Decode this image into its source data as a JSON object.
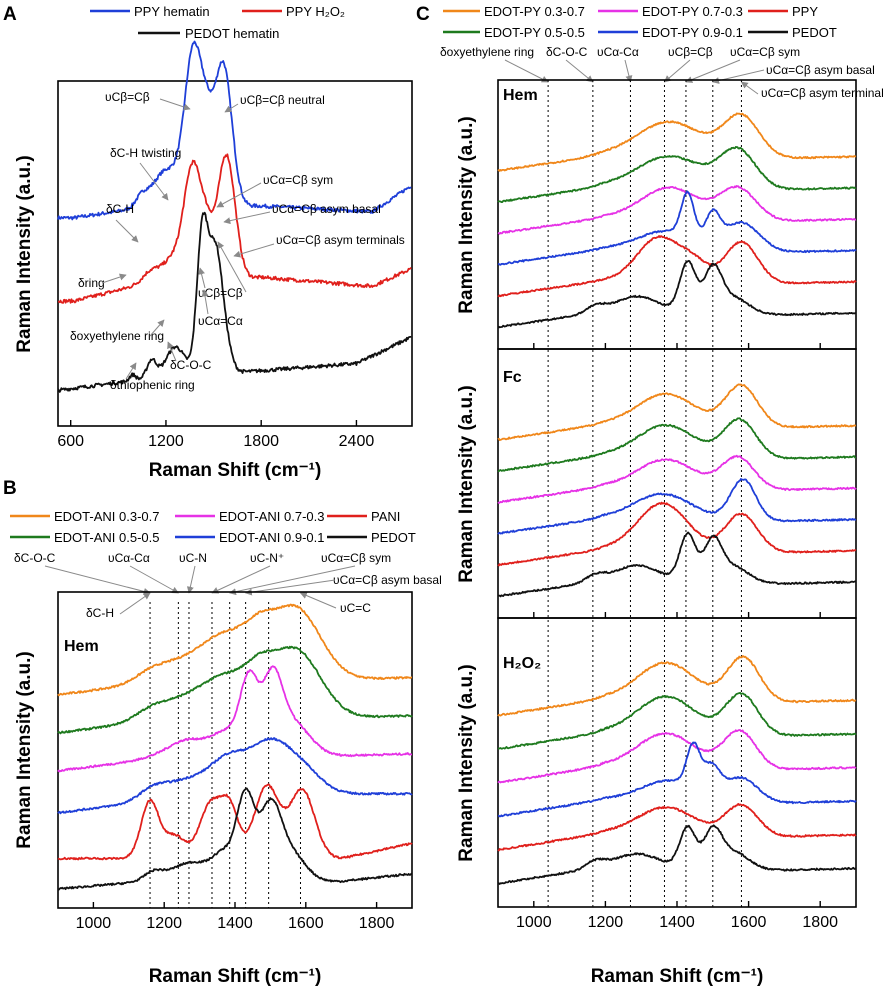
{
  "colors": {
    "blue": "#1f3fd8",
    "red": "#e0201c",
    "black": "#111111",
    "orange": "#f0871a",
    "green": "#1e7a1e",
    "magenta": "#e632e6",
    "arrow": "#8a8a8a"
  },
  "chart_data": [
    {
      "id": "A",
      "type": "line",
      "panel_label": "A",
      "xlabel": "Raman Shift (cm⁻¹)",
      "ylabel": "Raman Intensity (a.u.)",
      "xlim": [
        520,
        2750
      ],
      "xticks": [
        600,
        1200,
        1800,
        2400
      ],
      "xtick_labels": [
        "600",
        "1200",
        "1800",
        "2400"
      ],
      "legend": [
        "PPY hematin",
        "PPY H₂O₂",
        "PEDOT hematin"
      ],
      "series": [
        {
          "name": "PPY hematin",
          "color": "blue",
          "offset": 2.0,
          "baseline": [
            [
              620,
              0.9
            ],
            [
              1000,
              1.05
            ],
            [
              1800,
              1.1
            ],
            [
              2500,
              1.0
            ],
            [
              2750,
              1.45
            ]
          ],
          "peaks": [
            [
              1050,
              0.2,
              40
            ],
            [
              1150,
              0.3,
              60
            ],
            [
              1240,
              0.5,
              70
            ],
            [
              1375,
              2.6,
              55
            ],
            [
              1560,
              2.4,
              55
            ],
            [
              1460,
              0.8,
              40
            ]
          ]
        },
        {
          "name": "PPY H₂O₂",
          "color": "red",
          "offset": 1.2,
          "baseline": [
            [
              620,
              0.3
            ],
            [
              1000,
              0.55
            ],
            [
              1800,
              0.7
            ],
            [
              2500,
              0.55
            ],
            [
              2750,
              0.85
            ]
          ],
          "peaks": [
            [
              1100,
              0.2,
              50
            ],
            [
              1240,
              0.4,
              70
            ],
            [
              1370,
              1.9,
              55
            ],
            [
              1580,
              2.1,
              55
            ],
            [
              1460,
              0.6,
              40
            ]
          ]
        },
        {
          "name": "PEDOT hematin",
          "color": "black",
          "offset": 0.0,
          "baseline": [
            [
              520,
              0.0
            ],
            [
              1100,
              0.2
            ],
            [
              1900,
              0.35
            ],
            [
              2400,
              0.45
            ],
            [
              2750,
              0.9
            ]
          ],
          "peaks": [
            [
              990,
              0.1,
              20
            ],
            [
              1110,
              0.3,
              30
            ],
            [
              1260,
              0.5,
              60
            ],
            [
              1430,
              2.4,
              35
            ],
            [
              1510,
              1.9,
              40
            ],
            [
              1570,
              0.5,
              40
            ]
          ]
        }
      ],
      "annotations": [
        "υCβ=Cβ",
        "υCβ=Cβ neutral",
        "δC-H twisting",
        "υCα=Cβ sym",
        "δC-H",
        "υCα=Cβ asym basal",
        "υCα=Cβ asym terminals",
        "δring",
        "υCβ=Cβ",
        "δoxyethylene ring",
        "υCα=Cα",
        "δC-O-C",
        "δthiophenic ring"
      ]
    },
    {
      "id": "B",
      "type": "line",
      "panel_label": "B",
      "sublabel": "Hem",
      "xlabel": "Raman Shift (cm⁻¹)",
      "ylabel": "Raman Intensity (a.u.)",
      "xlim": [
        900,
        1900
      ],
      "xticks": [
        1000,
        1200,
        1400,
        1600,
        1800
      ],
      "xtick_labels": [
        "1000",
        "1200",
        "1400",
        "1600",
        "1800"
      ],
      "legend": [
        "EDOT-ANI 0.3-0.7",
        "EDOT-ANI 0.7-0.3",
        "PANI",
        "EDOT-ANI 0.5-0.5",
        "EDOT-ANI 0.9-0.1",
        "PEDOT"
      ],
      "vlines": [
        1160,
        1240,
        1270,
        1335,
        1385,
        1430,
        1495,
        1585
      ],
      "annotations": [
        "δC-O-C",
        "υCα-Cα",
        "υC-N",
        "υC-N⁺",
        "υCα=Cβ sym",
        "υCα=Cβ asym basal",
        "δC-H",
        "υC=C"
      ],
      "series": [
        {
          "name": "EDOT-ANI 0.3-0.7",
          "color": "orange",
          "offset": 5.0,
          "baseline": [
            [
              900,
              0.1
            ],
            [
              1150,
              0.4
            ],
            [
              1700,
              0.5
            ],
            [
              1900,
              0.55
            ]
          ],
          "peaks": [
            [
              1170,
              0.3,
              50
            ],
            [
              1260,
              0.4,
              60
            ],
            [
              1380,
              1.2,
              70
            ],
            [
              1570,
              1.9,
              70
            ],
            [
              1470,
              0.6,
              40
            ]
          ]
        },
        {
          "name": "EDOT-ANI 0.5-0.5",
          "color": "green",
          "offset": 4.0,
          "baseline": [
            [
              900,
              0.1
            ],
            [
              1150,
              0.4
            ],
            [
              1700,
              0.5
            ],
            [
              1900,
              0.55
            ]
          ],
          "peaks": [
            [
              1170,
              0.3,
              50
            ],
            [
              1260,
              0.4,
              60
            ],
            [
              1380,
              1.1,
              70
            ],
            [
              1570,
              1.8,
              70
            ],
            [
              1470,
              0.6,
              40
            ]
          ]
        },
        {
          "name": "EDOT-ANI 0.7-0.3",
          "color": "magenta",
          "offset": 3.0,
          "baseline": [
            [
              900,
              0.1
            ],
            [
              1150,
              0.4
            ],
            [
              1700,
              0.5
            ],
            [
              1900,
              0.55
            ]
          ],
          "peaks": [
            [
              1270,
              0.5,
              60
            ],
            [
              1380,
              0.6,
              40
            ],
            [
              1440,
              1.9,
              25
            ],
            [
              1505,
              1.8,
              28
            ],
            [
              1560,
              0.9,
              50
            ]
          ]
        },
        {
          "name": "EDOT-ANI 0.9-0.1",
          "color": "blue",
          "offset": 2.0,
          "baseline": [
            [
              900,
              0.0
            ],
            [
              1150,
              0.3
            ],
            [
              1700,
              0.5
            ],
            [
              1900,
              0.5
            ]
          ],
          "peaks": [
            [
              1170,
              0.3,
              40
            ],
            [
              1270,
              0.5,
              60
            ],
            [
              1380,
              0.9,
              50
            ],
            [
              1500,
              1.4,
              60
            ],
            [
              1600,
              0.5,
              50
            ]
          ]
        },
        {
          "name": "PANI",
          "color": "red",
          "offset": 0.6,
          "baseline": [
            [
              900,
              0.2
            ],
            [
              1700,
              0.2
            ],
            [
              1900,
              0.6
            ]
          ],
          "peaks": [
            [
              1160,
              1.5,
              25
            ],
            [
              1230,
              0.6,
              30
            ],
            [
              1330,
              1.4,
              30
            ],
            [
              1385,
              1.3,
              25
            ],
            [
              1490,
              1.9,
              35
            ],
            [
              1590,
              1.8,
              35
            ]
          ]
        },
        {
          "name": "PEDOT",
          "color": "black",
          "offset": 0.0,
          "baseline": [
            [
              900,
              0.0
            ],
            [
              1150,
              0.2
            ],
            [
              1700,
              0.2
            ],
            [
              1900,
              0.4
            ]
          ],
          "peaks": [
            [
              1170,
              0.2,
              25
            ],
            [
              1280,
              0.5,
              60
            ],
            [
              1370,
              0.6,
              30
            ],
            [
              1430,
              2.2,
              25
            ],
            [
              1500,
              1.9,
              30
            ],
            [
              1560,
              0.7,
              40
            ]
          ]
        }
      ]
    },
    {
      "id": "C",
      "type": "line",
      "panel_label": "C",
      "xlabel": "Raman Shift (cm⁻¹)",
      "ylabel": "Raman Intensity (a.u.)",
      "xlim": [
        900,
        1900
      ],
      "xticks": [
        1000,
        1200,
        1400,
        1600,
        1800
      ],
      "xtick_labels": [
        "1000",
        "1200",
        "1400",
        "1600",
        "1800"
      ],
      "legend": [
        "EDOT-PY 0.3-0.7",
        "EDOT-PY 0.7-0.3",
        "PPY",
        "EDOT-PY 0.5-0.5",
        "EDOT-PY 0.9-0.1",
        "PEDOT"
      ],
      "vlines": [
        1040,
        1165,
        1270,
        1365,
        1425,
        1500,
        1580
      ],
      "annotations": [
        "δoxyethylene ring",
        "δC-O-C",
        "υCα-Cα",
        "υCβ=Cβ",
        "υCα=Cβ sym",
        "υCα=Cβ asym basal",
        "υCα=Cβ asym terminal"
      ],
      "subpanels": [
        {
          "label": "Hem",
          "variant": "hem"
        },
        {
          "label": "Fc",
          "variant": "fc"
        },
        {
          "label": "H₂O₂",
          "variant": "h2o2"
        }
      ],
      "series": [
        {
          "name": "EDOT-PY 0.3-0.7",
          "color": "orange"
        },
        {
          "name": "EDOT-PY 0.5-0.5",
          "color": "green"
        },
        {
          "name": "EDOT-PY 0.7-0.3",
          "color": "magenta"
        },
        {
          "name": "EDOT-PY 0.9-0.1",
          "color": "blue"
        },
        {
          "name": "PPY",
          "color": "red"
        },
        {
          "name": "PEDOT",
          "color": "black"
        }
      ]
    }
  ]
}
